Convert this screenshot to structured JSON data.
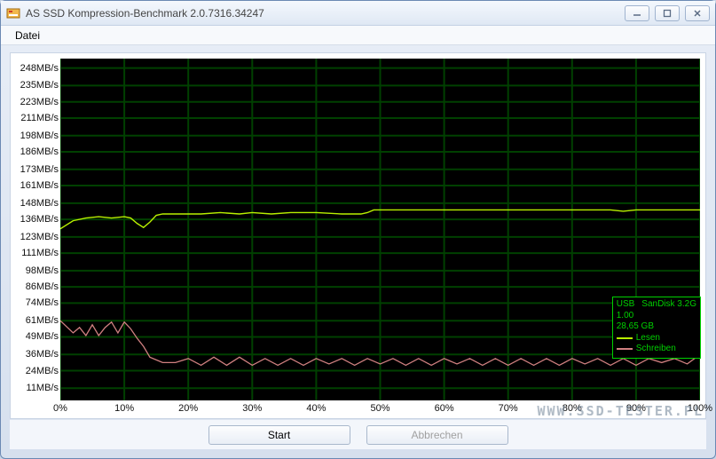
{
  "window": {
    "title": "AS SSD Kompression-Benchmark 2.0.7316.34247"
  },
  "menu": {
    "items": [
      "Datei"
    ]
  },
  "chart": {
    "type": "line",
    "background_color": "#000000",
    "grid_color": "#004000",
    "text_color": "#111111",
    "y_unit": "MB/s",
    "y_ticks": [
      11,
      24,
      36,
      49,
      61,
      74,
      86,
      98,
      111,
      123,
      136,
      148,
      161,
      173,
      186,
      198,
      211,
      223,
      235,
      248
    ],
    "y_tick_labels": [
      "11MB/s",
      "24MB/s",
      "36MB/s",
      "49MB/s",
      "61MB/s",
      "74MB/s",
      "86MB/s",
      "98MB/s",
      "111MB/s",
      "123MB/s",
      "136MB/s",
      "148MB/s",
      "161MB/s",
      "173MB/s",
      "186MB/s",
      "198MB/s",
      "211MB/s",
      "223MB/s",
      "235MB/s",
      "248MB/s"
    ],
    "ylim": [
      2,
      255
    ],
    "x_unit": "%",
    "x_ticks": [
      0,
      10,
      20,
      30,
      40,
      50,
      60,
      70,
      80,
      90,
      100
    ],
    "x_tick_labels": [
      "0%",
      "10%",
      "20%",
      "30%",
      "40%",
      "50%",
      "60%",
      "70%",
      "80%",
      "90%",
      "100%"
    ],
    "xlim": [
      0,
      100
    ],
    "series": [
      {
        "name": "Lesen",
        "color": "#b8f000",
        "line_width": 1.4,
        "data": [
          [
            0,
            129
          ],
          [
            2,
            135
          ],
          [
            4,
            137
          ],
          [
            6,
            138
          ],
          [
            8,
            137
          ],
          [
            10,
            138
          ],
          [
            11,
            137
          ],
          [
            12,
            133
          ],
          [
            13,
            130
          ],
          [
            14,
            134
          ],
          [
            15,
            139
          ],
          [
            16,
            140
          ],
          [
            18,
            140
          ],
          [
            20,
            140
          ],
          [
            22,
            140
          ],
          [
            25,
            141
          ],
          [
            28,
            140
          ],
          [
            30,
            141
          ],
          [
            33,
            140
          ],
          [
            36,
            141
          ],
          [
            40,
            141
          ],
          [
            44,
            140
          ],
          [
            47,
            140
          ],
          [
            48,
            141
          ],
          [
            49,
            143
          ],
          [
            50,
            143
          ],
          [
            52,
            143
          ],
          [
            55,
            143
          ],
          [
            58,
            143
          ],
          [
            62,
            143
          ],
          [
            66,
            143
          ],
          [
            70,
            143
          ],
          [
            74,
            143
          ],
          [
            78,
            143
          ],
          [
            82,
            143
          ],
          [
            86,
            143
          ],
          [
            88,
            142
          ],
          [
            90,
            143
          ],
          [
            92,
            143
          ],
          [
            94,
            143
          ],
          [
            96,
            143
          ],
          [
            98,
            143
          ],
          [
            100,
            143
          ]
        ]
      },
      {
        "name": "Schreiben",
        "color": "#d08080",
        "line_width": 1.3,
        "data": [
          [
            0,
            61
          ],
          [
            2,
            52
          ],
          [
            3,
            56
          ],
          [
            4,
            50
          ],
          [
            5,
            58
          ],
          [
            6,
            50
          ],
          [
            7,
            56
          ],
          [
            8,
            60
          ],
          [
            9,
            52
          ],
          [
            10,
            60
          ],
          [
            11,
            55
          ],
          [
            12,
            48
          ],
          [
            13,
            42
          ],
          [
            14,
            34
          ],
          [
            15,
            32
          ],
          [
            16,
            30
          ],
          [
            18,
            30
          ],
          [
            20,
            33
          ],
          [
            22,
            28
          ],
          [
            24,
            34
          ],
          [
            26,
            28
          ],
          [
            28,
            34
          ],
          [
            30,
            28
          ],
          [
            32,
            33
          ],
          [
            34,
            28
          ],
          [
            36,
            33
          ],
          [
            38,
            28
          ],
          [
            40,
            33
          ],
          [
            42,
            29
          ],
          [
            44,
            33
          ],
          [
            46,
            28
          ],
          [
            48,
            33
          ],
          [
            50,
            29
          ],
          [
            52,
            33
          ],
          [
            54,
            28
          ],
          [
            56,
            33
          ],
          [
            58,
            28
          ],
          [
            60,
            33
          ],
          [
            62,
            29
          ],
          [
            64,
            33
          ],
          [
            66,
            28
          ],
          [
            68,
            33
          ],
          [
            70,
            28
          ],
          [
            72,
            33
          ],
          [
            74,
            28
          ],
          [
            76,
            33
          ],
          [
            78,
            28
          ],
          [
            80,
            33
          ],
          [
            82,
            29
          ],
          [
            84,
            33
          ],
          [
            86,
            28
          ],
          [
            88,
            33
          ],
          [
            90,
            28
          ],
          [
            92,
            33
          ],
          [
            94,
            30
          ],
          [
            96,
            33
          ],
          [
            98,
            29
          ],
          [
            100,
            36
          ]
        ]
      }
    ],
    "legend": {
      "border_color": "#00c000",
      "text_color": "#00c000",
      "device_line1_left": "USB",
      "device_line1_right": "SanDisk 3.2G",
      "device_line2": "1.00",
      "device_line3": "28,65 GB",
      "entries": [
        {
          "label": "Lesen",
          "color": "#b8f000"
        },
        {
          "label": "Schreiben",
          "color": "#d08080"
        }
      ]
    }
  },
  "buttons": {
    "start": "Start",
    "cancel": "Abbrechen"
  },
  "watermark": "WWW.SSD-TESTER.PL"
}
